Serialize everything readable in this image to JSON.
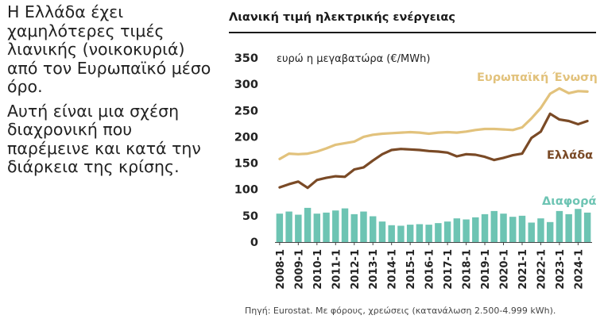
{
  "left_panel": {
    "paragraph1": "Η Ελλάδα έχει χαμηλότερες τιμές λιανικής (νοικοκυριά) από τον Ευρωπαϊκό μέσο όρο.",
    "paragraph2": "Αυτή είναι μια σχέση διαχρονική που παρέμεινε και κατά την διάρκεια της κρίσης."
  },
  "source": "Πηγή: Eurostat. Με φόρους, χρεώσεις (κατανάλωση 2.500-4.999 kWh).",
  "colors": {
    "eu": "#e2c27c",
    "greece": "#7a4a26",
    "diff": "#6dc4b3",
    "axis": "#444444",
    "text": "#222222"
  },
  "chart_data": {
    "type": "line",
    "title": "Λιανική τιμή ηλεκτρικής ενέργειας",
    "ylabel": "ευρώ η μεγαβατώρα (€/MWh)",
    "xlabel": "",
    "ylim": [
      0,
      350
    ],
    "yticks": [
      0,
      50,
      100,
      150,
      200,
      250,
      300,
      350
    ],
    "xtick_labels": [
      "2008-1",
      "2009-1",
      "2010-1",
      "2011-1",
      "2012-1",
      "2013-1",
      "2014-1",
      "2015-1",
      "2016-1",
      "2017-1",
      "2018-1",
      "2019-1",
      "2020-1",
      "2021-1",
      "2022-1",
      "2023-1",
      "2024-1"
    ],
    "x": [
      "2008-1",
      "2008-2",
      "2009-1",
      "2009-2",
      "2010-1",
      "2010-2",
      "2011-1",
      "2011-2",
      "2012-1",
      "2012-2",
      "2013-1",
      "2013-2",
      "2014-1",
      "2014-2",
      "2015-1",
      "2015-2",
      "2016-1",
      "2016-2",
      "2017-1",
      "2017-2",
      "2018-1",
      "2018-2",
      "2019-1",
      "2019-2",
      "2020-1",
      "2020-2",
      "2021-1",
      "2021-2",
      "2022-1",
      "2022-2",
      "2023-1",
      "2023-2",
      "2024-1",
      "2024-2"
    ],
    "series": [
      {
        "name": "Ευρωπαϊκή Ένωση",
        "kind": "line",
        "color": "#e2c27c",
        "values": [
          158,
          168,
          167,
          168,
          172,
          178,
          185,
          188,
          191,
          200,
          204,
          206,
          207,
          208,
          209,
          208,
          206,
          208,
          209,
          208,
          210,
          213,
          215,
          215,
          214,
          213,
          218,
          235,
          255,
          282,
          292,
          283,
          287,
          286
        ]
      },
      {
        "name": "Ελλάδα",
        "kind": "line",
        "color": "#7a4a26",
        "values": [
          104,
          110,
          115,
          103,
          118,
          122,
          125,
          124,
          138,
          142,
          155,
          167,
          175,
          177,
          176,
          175,
          173,
          172,
          170,
          163,
          167,
          166,
          162,
          156,
          160,
          165,
          168,
          198,
          210,
          244,
          233,
          230,
          224,
          230
        ]
      },
      {
        "name": "Διαφορά",
        "kind": "bar",
        "color": "#6dc4b3",
        "values": [
          54,
          58,
          52,
          65,
          54,
          56,
          60,
          64,
          53,
          58,
          49,
          39,
          32,
          31,
          33,
          34,
          33,
          36,
          39,
          45,
          43,
          47,
          53,
          59,
          54,
          48,
          50,
          37,
          45,
          38,
          59,
          53,
          63,
          56
        ]
      }
    ],
    "legend": [
      "Ευρωπαϊκή Ένωση",
      "Ελλάδα",
      "Διαφορά"
    ],
    "legend_placement": "inline labels at right"
  }
}
